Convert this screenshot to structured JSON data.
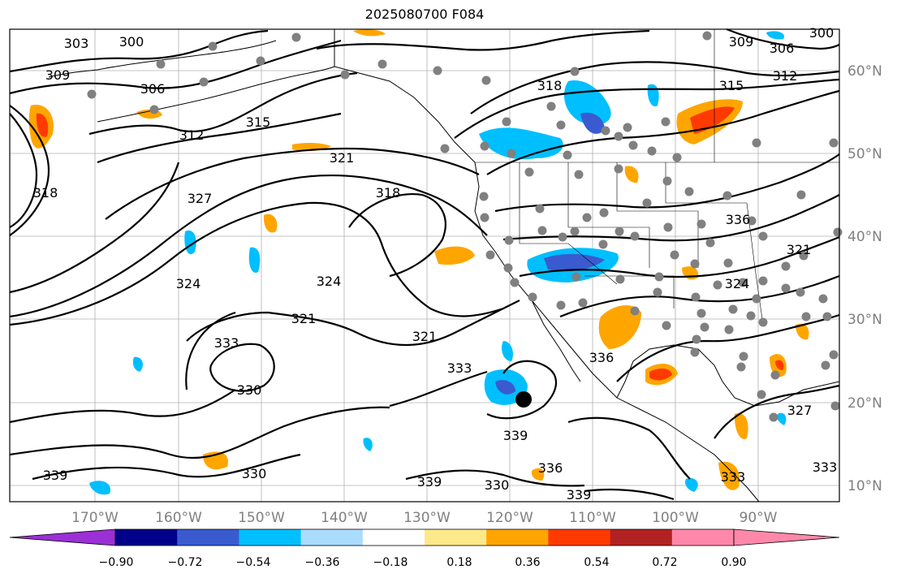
{
  "title": "2025080700 F084",
  "lat_labels": [
    "60°N",
    "50°N",
    "40°N",
    "30°N",
    "20°N",
    "10°N"
  ],
  "lon_labels": [
    "170°W",
    "160°W",
    "150°W",
    "140°W",
    "130°W",
    "120°W",
    "110°W",
    "100°W",
    "90°W"
  ],
  "contour_labels": [
    "303",
    "300",
    "309",
    "306",
    "312",
    "315",
    "318",
    "321",
    "318",
    "327",
    "324",
    "324",
    "321",
    "333",
    "330",
    "321",
    "333",
    "339",
    "336",
    "330",
    "339",
    "330",
    "339",
    "339",
    "336",
    "324",
    "321",
    "336",
    "333",
    "327",
    "312",
    "315",
    "318",
    "306",
    "309",
    "300",
    "333"
  ],
  "colorbar": {
    "ticks": [
      "−0.90",
      "−0.72",
      "−0.54",
      "−0.36",
      "−0.18",
      "0.18",
      "0.36",
      "0.54",
      "0.72",
      "0.90"
    ],
    "colors": [
      "#9b30d6",
      "#00008b",
      "#3a5bd0",
      "#00bfff",
      "#aadcff",
      "#ffffff",
      "#fde98a",
      "#ffa500",
      "#ff3a00",
      "#b22222",
      "#ff88aa",
      "#ff88aa"
    ]
  },
  "colors": {
    "contour": "#000000",
    "station": "#808080",
    "neg_light": "#00bfff",
    "neg_mid": "#3a5bd0",
    "pos_light": "#ffa500",
    "pos_mid": "#ff3a00"
  },
  "marker": "storm-center"
}
